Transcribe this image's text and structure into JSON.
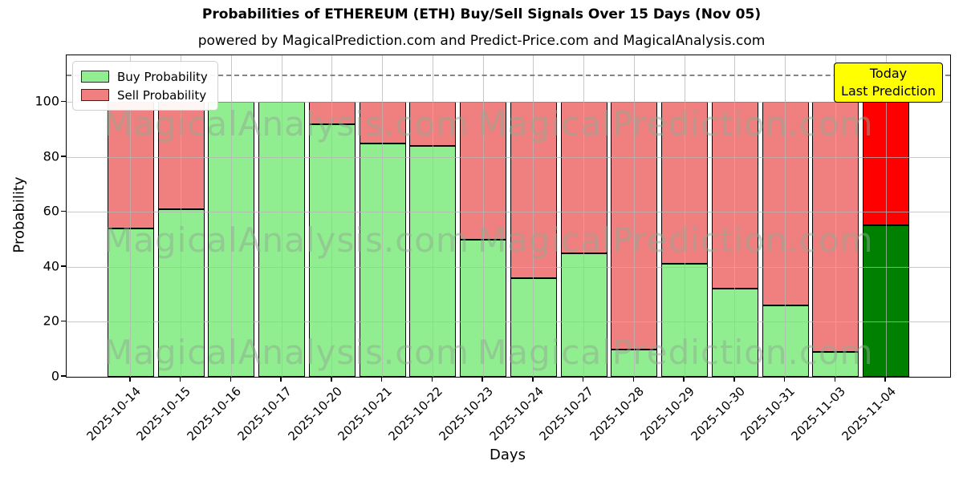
{
  "title": "Probabilities of ETHEREUM (ETH) Buy/Sell Signals Over 15 Days (Nov 05)",
  "subtitle": "powered by MagicalPrediction.com and Predict-Price.com and MagicalAnalysis.com",
  "legend": {
    "buy_label": "Buy Probability",
    "sell_label": "Sell Probability"
  },
  "annotation": {
    "line1": "Today",
    "line2": "Last Prediction"
  },
  "axes": {
    "ylabel": "Probability",
    "xlabel": "Days",
    "yticks": [
      0,
      20,
      40,
      60,
      80,
      100
    ],
    "ylim": [
      0,
      117
    ],
    "dashed_line_y": 110,
    "grid": true
  },
  "watermarks": [
    "MagicalAnalysis.com",
    "MagicalPrediction.com"
  ],
  "colors": {
    "buy": "#90EE90",
    "sell": "#F08080",
    "today_buy": "#008000",
    "today_sell": "#FF0000",
    "annotation_bg": "#FFFF00",
    "gridline": "#B5B5B5",
    "dashed_line": "#858585",
    "bar_edge": "#000000"
  },
  "chart_data": {
    "type": "bar",
    "stacked": true,
    "title": "Probabilities of ETHEREUM (ETH) Buy/Sell Signals Over 15 Days (Nov 05)",
    "xlabel": "Days",
    "ylabel": "Probability",
    "ylim": [
      0,
      117
    ],
    "legend_position": "upper-left",
    "categories": [
      "2025-10-14",
      "2025-10-15",
      "2025-10-16",
      "2025-10-17",
      "2025-10-20",
      "2025-10-21",
      "2025-10-22",
      "2025-10-23",
      "2025-10-24",
      "2025-10-27",
      "2025-10-28",
      "2025-10-29",
      "2025-10-30",
      "2025-10-31",
      "2025-11-03",
      "2025-11-04"
    ],
    "series": [
      {
        "name": "Buy Probability",
        "color": "#90EE90",
        "values": [
          54,
          61,
          100,
          100,
          92,
          85,
          84,
          50,
          36,
          45,
          10,
          41,
          32,
          26,
          9,
          55
        ]
      },
      {
        "name": "Sell Probability",
        "color": "#F08080",
        "values": [
          46,
          39,
          0,
          0,
          8,
          15,
          16,
          50,
          64,
          55,
          90,
          59,
          68,
          74,
          91,
          45
        ]
      }
    ],
    "today_bar": {
      "category": "2025-11-04",
      "buy_color": "#008000",
      "sell_color": "#FF0000"
    }
  }
}
